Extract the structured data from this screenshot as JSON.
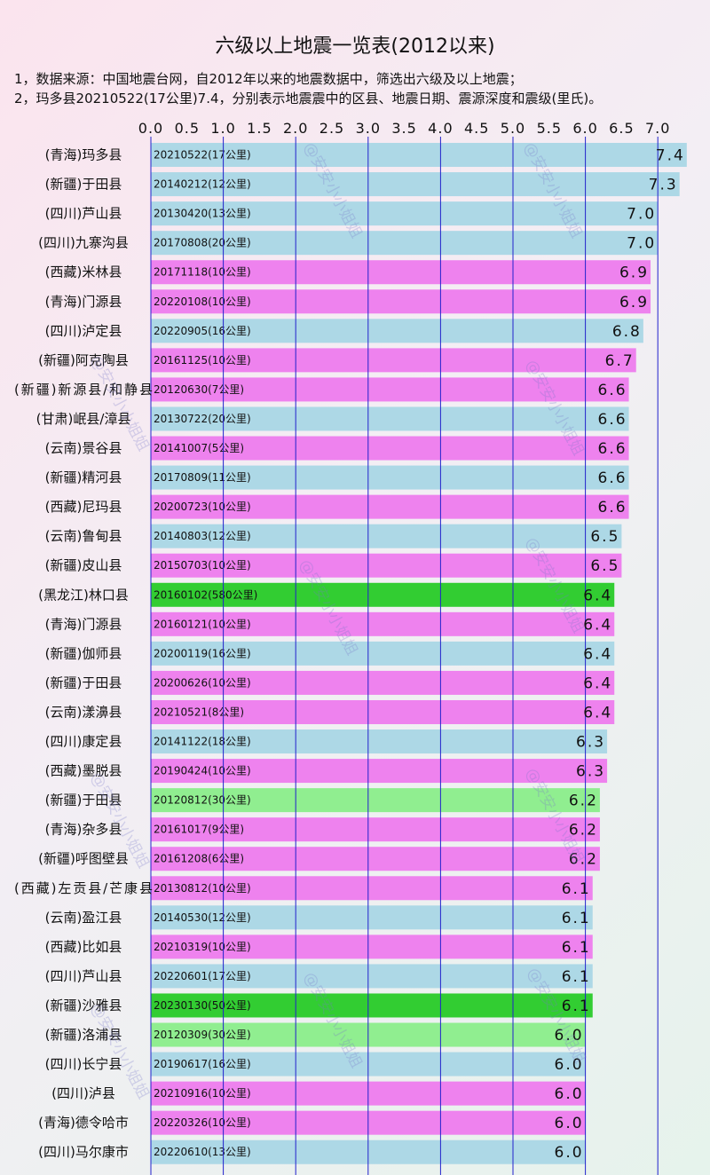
{
  "chart_data": {
    "type": "bar",
    "orientation": "horizontal",
    "title": "六级以上地震一览表(2012以来)",
    "notes": [
      "1，数据来源：中国地震台网，自2012年以来的地震数据中，筛选出六级及以上地震；",
      "2，玛多县20210522(17公里)7.4，分别表示地震震中的区县、地震日期、震源深度和震级(里氏)。"
    ],
    "x_ticks": [
      "0.0",
      "0.5",
      "1.0",
      "1.5",
      "2.0",
      "2.5",
      "3.0",
      "3.5",
      "4.0",
      "4.5",
      "5.0",
      "5.5",
      "6.0",
      "6.5",
      "7.0"
    ],
    "xlim": [
      0,
      7.4
    ],
    "grid": true,
    "categories": [
      "(青海)玛多县",
      "(新疆)于田县",
      "(四川)芦山县",
      "(四川)九寨沟县",
      "(西藏)米林县",
      "(青海)门源县",
      "(四川)泸定县",
      "(新疆)阿克陶县",
      "(新疆)新源县/和静县",
      "(甘肃)岷县/漳县",
      "(云南)景谷县",
      "(新疆)精河县",
      "(西藏)尼玛县",
      "(云南)鲁甸县",
      "(新疆)皮山县",
      "(黑龙江)林口县",
      "(青海)门源县",
      "(新疆)伽师县",
      "(新疆)于田县",
      "(云南)漾濞县",
      "(四川)康定县",
      "(西藏)墨脱县",
      "(新疆)于田县",
      "(青海)杂多县",
      "(新疆)呼图壁县",
      "(西藏)左贡县/芒康县",
      "(云南)盈江县",
      "(西藏)比如县",
      "(四川)芦山县",
      "(新疆)沙雅县",
      "(新疆)洛浦县",
      "(四川)长宁县",
      "(四川)泸县",
      "(青海)德令哈市",
      "(四川)马尔康市"
    ],
    "bar_labels": [
      "20210522(17公里)",
      "20140212(12公里)",
      "20130420(13公里)",
      "20170808(20公里)",
      "20171118(10公里)",
      "20220108(10公里)",
      "20220905(16公里)",
      "20161125(10公里)",
      "20120630(7公里)",
      "20130722(20公里)",
      "20141007(5公里)",
      "20170809(11公里)",
      "20200723(10公里)",
      "20140803(12公里)",
      "20150703(10公里)",
      "20160102(580公里)",
      "20160121(10公里)",
      "20200119(16公里)",
      "20200626(10公里)",
      "20210521(8公里)",
      "20141122(18公里)",
      "20190424(10公里)",
      "20120812(30公里)",
      "20161017(9公里)",
      "20161208(6公里)",
      "20130812(10公里)",
      "20140530(12公里)",
      "20210319(10公里)",
      "20220601(17公里)",
      "20230130(50公里)",
      "20120309(30公里)",
      "20190617(16公里)",
      "20210916(10公里)",
      "20220326(10公里)",
      "20220610(13公里)"
    ],
    "values": [
      7.4,
      7.3,
      7.0,
      7.0,
      6.9,
      6.9,
      6.8,
      6.7,
      6.6,
      6.6,
      6.6,
      6.6,
      6.6,
      6.5,
      6.5,
      6.4,
      6.4,
      6.4,
      6.4,
      6.4,
      6.3,
      6.3,
      6.2,
      6.2,
      6.2,
      6.1,
      6.1,
      6.1,
      6.1,
      6.1,
      6.0,
      6.0,
      6.0,
      6.0,
      6.0
    ],
    "value_labels": [
      "7.4",
      "7.3",
      "7.0",
      "7.0",
      "6.9",
      "6.9",
      "6.8",
      "6.7",
      "6.6",
      "6.6",
      "6.6",
      "6.6",
      "6.6",
      "6.5",
      "6.5",
      "6.4",
      "6.4",
      "6.4",
      "6.4",
      "6.4",
      "6.3",
      "6.3",
      "6.2",
      "6.2",
      "6.2",
      "6.1",
      "6.1",
      "6.1",
      "6.1",
      "6.1",
      "6.0",
      "6.0",
      "6.0",
      "6.0",
      "6.0"
    ],
    "bar_colors": [
      "#add8e6",
      "#add8e6",
      "#add8e6",
      "#add8e6",
      "#ee82ee",
      "#ee82ee",
      "#add8e6",
      "#ee82ee",
      "#ee82ee",
      "#add8e6",
      "#ee82ee",
      "#add8e6",
      "#ee82ee",
      "#add8e6",
      "#ee82ee",
      "#32cd32",
      "#ee82ee",
      "#add8e6",
      "#ee82ee",
      "#ee82ee",
      "#add8e6",
      "#ee82ee",
      "#90ee90",
      "#ee82ee",
      "#ee82ee",
      "#ee82ee",
      "#add8e6",
      "#ee82ee",
      "#add8e6",
      "#32cd32",
      "#90ee90",
      "#add8e6",
      "#ee82ee",
      "#ee82ee",
      "#add8e6"
    ],
    "color_meaning": {
      "#add8e6": "depth 11-20 km",
      "#ee82ee": "depth 0-10 km",
      "#90ee90": "depth 21-30 km",
      "#32cd32": "depth over 30 km"
    },
    "grid_color": "#2222cc",
    "watermark": "@安安小小姐姐"
  }
}
